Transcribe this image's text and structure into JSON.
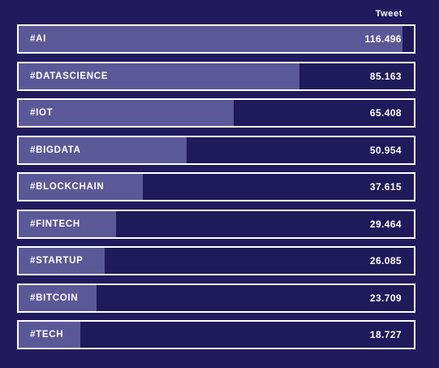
{
  "chart_data": {
    "type": "bar",
    "orientation": "horizontal",
    "column_header": "Tweet",
    "categories": [
      "#AI",
      "#DATASCIENCE",
      "#IOT",
      "#BIGDATA",
      "#BLOCKCHAIN",
      "#FINTECH",
      "#STARTUP",
      "#BITCOIN",
      "#TECH"
    ],
    "values": [
      116496,
      85163,
      65408,
      50954,
      37615,
      29464,
      26085,
      23709,
      18727
    ],
    "value_labels": [
      "116.496",
      "85.163",
      "65.408",
      "50.954",
      "37.615",
      "29.464",
      "26.085",
      "23.709",
      "18.727"
    ],
    "xlim": [
      0,
      120000
    ],
    "grid": false,
    "legend": "none"
  },
  "colors": {
    "background": "#211b5e",
    "bar_fill": "#5b5898",
    "border": "#ffffff",
    "text": "#ffffff"
  }
}
